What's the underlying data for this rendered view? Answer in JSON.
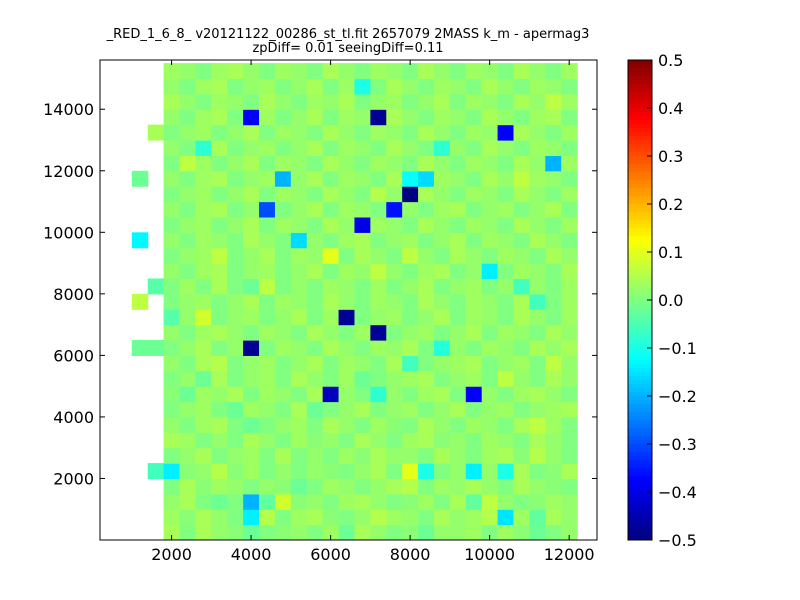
{
  "chart_data": {
    "type": "heatmap",
    "title_lines": [
      "_RED_1_6_8_ v20121122_00286_st_tl.fit 2657079 2MASS k_m - apermag3",
      "zpDiff= 0.01 seeingDiff=0.11"
    ],
    "xlabel": "",
    "ylabel": "",
    "xlim": [
      200,
      12700
    ],
    "ylim": [
      0,
      15600
    ],
    "x_ticks": [
      2000,
      4000,
      6000,
      8000,
      10000,
      12000
    ],
    "y_ticks": [
      2000,
      4000,
      6000,
      8000,
      10000,
      12000,
      14000
    ],
    "colorbar": {
      "colormap": "jet",
      "vmin": -0.5,
      "vmax": 0.5,
      "ticks": [
        -0.5,
        -0.4,
        -0.3,
        -0.2,
        -0.1,
        0.0,
        0.1,
        0.2,
        0.3,
        0.4,
        0.5
      ],
      "tick_labels": [
        "−0.5",
        "−0.4",
        "−0.3",
        "−0.2",
        "−0.1",
        "0.0",
        "0.1",
        "0.2",
        "0.3",
        "0.4",
        "0.5"
      ]
    },
    "grid": {
      "x_start": 1000,
      "y_start": 0,
      "cell_width": 400,
      "cell_height": 500,
      "rows_from_bottom": [
        [
          null,
          null,
          0.04,
          0.0,
          0.04,
          0.02,
          0.01,
          -0.02,
          0.0,
          0.01,
          0.02,
          0.0,
          0.03,
          -0.02,
          0.04,
          0.02,
          0.0,
          0.01,
          -0.02,
          0.02,
          0.02,
          0.03,
          0.0,
          0.03,
          0.01,
          -0.02,
          0.0,
          0.02
        ],
        [
          null,
          null,
          0.03,
          0.01,
          0.04,
          0.02,
          0.0,
          -0.14,
          0.05,
          0.0,
          0.03,
          0.04,
          0.01,
          0.0,
          0.02,
          0.05,
          0.03,
          0.02,
          0.0,
          0.04,
          0.02,
          0.03,
          0.05,
          -0.15,
          0.03,
          -0.03,
          0.04,
          0.02
        ],
        [
          null,
          null,
          0.02,
          0.04,
          0.0,
          -0.02,
          0.0,
          -0.2,
          -0.03,
          0.08,
          0.01,
          0.02,
          0.0,
          0.03,
          0.04,
          0.02,
          0.0,
          0.01,
          0.03,
          0.0,
          0.04,
          -0.03,
          0.06,
          0.02,
          0.0,
          0.01,
          0.03,
          0.02
        ],
        [
          null,
          null,
          0.0,
          0.04,
          0.01,
          0.03,
          0.02,
          0.0,
          0.02,
          0.01,
          -0.02,
          0.0,
          0.03,
          0.02,
          0.0,
          0.02,
          0.04,
          0.05,
          0.0,
          0.03,
          0.02,
          0.04,
          0.02,
          0.0,
          0.04,
          0.02,
          0.01,
          0.0
        ],
        [
          null,
          -0.06,
          -0.14,
          0.01,
          0.02,
          0.05,
          0.01,
          0.03,
          0.0,
          0.02,
          0.0,
          0.02,
          0.01,
          0.0,
          0.02,
          0.04,
          0.0,
          0.1,
          -0.1,
          0.0,
          0.02,
          -0.14,
          0.02,
          -0.1,
          0.04,
          0.0,
          0.01,
          0.04
        ],
        [
          null,
          null,
          0.0,
          0.02,
          0.04,
          0.0,
          0.02,
          0.03,
          0.0,
          0.04,
          0.0,
          0.02,
          0.0,
          0.03,
          0.01,
          0.04,
          0.02,
          0.02,
          0.0,
          0.04,
          0.02,
          0.0,
          0.03,
          0.04,
          0.01,
          0.05,
          0.02,
          0.0
        ],
        [
          null,
          null,
          0.04,
          0.03,
          0.0,
          0.02,
          0.0,
          0.04,
          0.02,
          0.0,
          0.03,
          0.01,
          0.02,
          0.0,
          0.04,
          0.02,
          0.0,
          0.03,
          0.04,
          0.01,
          0.02,
          0.0,
          0.03,
          0.02,
          0.0,
          0.04,
          0.02,
          0.0
        ],
        [
          null,
          null,
          0.02,
          0.0,
          0.03,
          0.04,
          0.0,
          -0.02,
          0.0,
          0.02,
          0.03,
          0.0,
          0.04,
          0.02,
          0.0,
          0.03,
          0.01,
          0.0,
          0.04,
          0.02,
          0.0,
          0.03,
          0.02,
          0.0,
          0.04,
          0.06,
          0.03,
          0.0
        ],
        [
          null,
          null,
          0.0,
          0.02,
          0.03,
          0.0,
          -0.02,
          0.03,
          0.02,
          0.0,
          0.04,
          -0.02,
          0.0,
          0.02,
          0.04,
          0.0,
          0.02,
          0.03,
          0.0,
          0.02,
          0.04,
          0.0,
          0.02,
          0.03,
          0.0,
          0.02,
          0.03,
          0.04
        ],
        [
          null,
          null,
          0.01,
          -0.02,
          0.03,
          0.02,
          0.04,
          0.0,
          0.03,
          0.02,
          0.0,
          0.04,
          -0.44,
          0.02,
          0.0,
          -0.08,
          0.02,
          0.0,
          0.03,
          0.04,
          0.0,
          -0.38,
          0.02,
          0.0,
          0.03,
          0.04,
          0.02,
          0.0
        ],
        [
          null,
          null,
          0.0,
          0.02,
          -0.02,
          0.04,
          0.0,
          0.02,
          0.03,
          0.0,
          0.04,
          0.02,
          0.0,
          0.03,
          -0.02,
          0.0,
          0.02,
          0.03,
          0.04,
          0.0,
          0.02,
          0.03,
          0.0,
          0.06,
          0.02,
          0.0,
          0.04,
          0.02
        ],
        [
          null,
          null,
          0.02,
          0.0,
          0.04,
          0.05,
          0.0,
          0.02,
          0.03,
          0.0,
          0.02,
          0.04,
          0.0,
          0.03,
          0.02,
          0.0,
          0.04,
          -0.06,
          0.0,
          0.02,
          0.03,
          0.04,
          0.0,
          0.02,
          0.03,
          0.0,
          0.06,
          0.02
        ],
        [
          -0.02,
          -0.02,
          0.0,
          0.02,
          0.04,
          0.0,
          0.02,
          -0.48,
          0.0,
          0.03,
          0.02,
          0.0,
          0.04,
          0.02,
          0.0,
          0.03,
          0.02,
          0.04,
          0.0,
          -0.09,
          0.02,
          0.0,
          0.03,
          0.02,
          0.0,
          0.04,
          0.02,
          0.04
        ],
        [
          null,
          null,
          0.02,
          0.0,
          0.03,
          0.04,
          0.02,
          0.0,
          0.03,
          0.02,
          0.0,
          0.04,
          0.02,
          0.0,
          0.03,
          -0.48,
          0.0,
          0.02,
          0.03,
          0.0,
          0.02,
          0.04,
          0.0,
          0.03,
          0.02,
          0.0,
          0.04,
          0.02
        ],
        [
          null,
          null,
          -0.04,
          0.02,
          0.08,
          0.0,
          0.02,
          0.03,
          0.0,
          0.02,
          0.04,
          0.0,
          0.03,
          -0.48,
          0.0,
          0.02,
          0.03,
          0.0,
          0.02,
          0.04,
          0.0,
          0.03,
          0.02,
          0.0,
          0.04,
          0.02,
          0.0,
          0.03
        ],
        [
          0.06,
          null,
          0.0,
          0.02,
          0.03,
          0.0,
          0.02,
          0.04,
          0.0,
          0.03,
          0.02,
          0.0,
          0.04,
          0.02,
          0.0,
          0.03,
          0.02,
          0.0,
          0.04,
          0.02,
          0.0,
          0.03,
          0.02,
          0.0,
          0.04,
          -0.06,
          0.0,
          0.03
        ],
        [
          null,
          -0.04,
          0.0,
          0.03,
          0.0,
          0.04,
          0.0,
          -0.02,
          0.06,
          0.0,
          0.02,
          0.0,
          0.03,
          0.02,
          0.0,
          0.03,
          0.0,
          0.02,
          0.04,
          0.0,
          0.02,
          0.03,
          0.0,
          0.02,
          -0.06,
          0.02,
          0.0,
          0.03
        ],
        [
          null,
          null,
          0.02,
          0.0,
          0.03,
          0.04,
          0.0,
          0.02,
          0.03,
          0.0,
          0.02,
          0.04,
          0.0,
          0.03,
          0.02,
          0.06,
          0.02,
          0.0,
          0.03,
          0.04,
          0.0,
          0.02,
          -0.14,
          0.0,
          0.03,
          0.02,
          0.0,
          0.04
        ],
        [
          null,
          null,
          0.0,
          0.02,
          0.03,
          0.06,
          0.0,
          0.02,
          0.04,
          0.0,
          0.03,
          0.02,
          0.1,
          0.0,
          0.04,
          0.02,
          0.0,
          0.06,
          0.02,
          0.0,
          0.04,
          0.02,
          0.0,
          0.03,
          0.02,
          0.0,
          0.04,
          0.02
        ],
        [
          -0.13,
          null,
          0.02,
          0.0,
          0.03,
          0.02,
          0.0,
          0.04,
          0.02,
          0.0,
          -0.16,
          0.02,
          0.0,
          0.03,
          0.04,
          0.0,
          0.02,
          0.03,
          0.0,
          0.02,
          0.04,
          0.0,
          0.03,
          0.02,
          0.0,
          0.04,
          0.02,
          0.0
        ],
        [
          null,
          null,
          0.0,
          0.02,
          0.03,
          0.0,
          0.02,
          0.04,
          0.0,
          0.03,
          0.02,
          0.0,
          0.04,
          0.02,
          -0.4,
          0.03,
          0.02,
          0.0,
          0.04,
          0.02,
          0.0,
          0.03,
          0.02,
          0.0,
          0.04,
          0.02,
          0.0,
          0.03
        ],
        [
          null,
          null,
          0.02,
          0.0,
          0.03,
          0.04,
          0.0,
          0.02,
          -0.3,
          0.0,
          0.02,
          0.04,
          0.0,
          0.03,
          0.02,
          0.0,
          -0.36,
          0.02,
          0.0,
          0.03,
          0.04,
          0.0,
          0.02,
          0.03,
          0.0,
          0.02,
          0.04,
          0.0
        ],
        [
          null,
          null,
          0.0,
          0.02,
          0.03,
          0.0,
          0.02,
          0.04,
          0.0,
          0.03,
          0.02,
          0.0,
          0.04,
          0.02,
          0.0,
          0.05,
          0.02,
          -0.5,
          0.04,
          0.02,
          0.0,
          0.03,
          0.02,
          0.0,
          0.04,
          0.02,
          0.0,
          0.03
        ],
        [
          -0.02,
          null,
          0.02,
          0.0,
          0.03,
          0.04,
          0.0,
          0.02,
          0.03,
          -0.2,
          0.02,
          0.04,
          0.0,
          0.03,
          0.02,
          0.0,
          0.04,
          -0.12,
          -0.16,
          0.03,
          0.02,
          0.0,
          0.04,
          0.02,
          0.06,
          0.03,
          0.02,
          0.0
        ],
        [
          null,
          null,
          0.0,
          0.06,
          0.03,
          0.0,
          0.02,
          0.04,
          0.0,
          0.03,
          0.02,
          0.0,
          0.04,
          0.02,
          0.0,
          0.03,
          0.02,
          0.0,
          0.04,
          0.02,
          0.0,
          0.03,
          0.02,
          0.0,
          0.04,
          0.02,
          -0.2,
          0.03
        ],
        [
          null,
          null,
          0.02,
          0.0,
          -0.08,
          0.04,
          0.0,
          0.02,
          0.03,
          0.0,
          0.02,
          0.04,
          0.0,
          0.03,
          0.02,
          0.0,
          0.04,
          0.02,
          0.0,
          -0.08,
          0.02,
          0.0,
          0.04,
          0.02,
          0.0,
          0.03,
          0.02,
          0.0
        ],
        [
          null,
          0.04,
          0.0,
          0.02,
          0.03,
          0.0,
          0.02,
          0.04,
          0.0,
          0.03,
          0.02,
          0.0,
          0.04,
          0.02,
          0.0,
          0.03,
          0.02,
          0.0,
          0.04,
          0.02,
          0.0,
          0.03,
          0.02,
          -0.38,
          0.04,
          0.02,
          0.0,
          0.03
        ],
        [
          null,
          null,
          0.02,
          0.0,
          0.03,
          0.04,
          0.0,
          -0.38,
          0.03,
          0.0,
          0.02,
          0.04,
          0.0,
          0.03,
          0.02,
          -0.48,
          0.04,
          0.02,
          0.0,
          0.03,
          0.02,
          0.0,
          0.04,
          0.02,
          0.0,
          0.03,
          0.04,
          0.0
        ],
        [
          null,
          null,
          0.04,
          0.02,
          0.0,
          0.03,
          0.02,
          0.0,
          0.04,
          0.02,
          0.0,
          0.03,
          0.02,
          0.04,
          0.0,
          0.02,
          0.03,
          0.0,
          0.02,
          0.04,
          0.0,
          0.03,
          0.02,
          0.0,
          0.04,
          0.02,
          0.06,
          0.03
        ],
        [
          null,
          null,
          0.02,
          0.0,
          0.03,
          0.04,
          0.0,
          0.02,
          0.03,
          0.0,
          0.02,
          0.04,
          0.0,
          0.03,
          -0.1,
          0.0,
          0.04,
          0.02,
          0.0,
          0.03,
          0.02,
          0.0,
          0.04,
          0.02,
          0.0,
          0.03,
          0.02,
          0.0
        ],
        [
          null,
          null,
          0.03,
          0.02,
          0.0,
          0.03,
          0.04,
          0.02,
          0.0,
          0.03,
          0.02,
          0.0,
          0.04,
          0.02,
          0.0,
          0.03,
          0.02,
          0.0,
          0.04,
          0.02,
          0.0,
          0.03,
          0.02,
          0.0,
          0.04,
          0.02,
          0.0,
          0.03
        ]
      ]
    }
  }
}
